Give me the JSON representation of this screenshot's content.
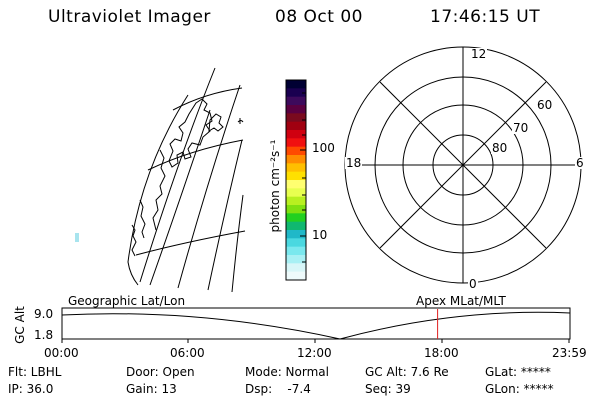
{
  "header": {
    "title": "Ultraviolet Imager",
    "date": "08 Oct 00",
    "time": "17:46:15 UT"
  },
  "colorbar": {
    "unit_label": "photon cm⁻²s⁻¹",
    "tick_labels": [
      "100",
      "10"
    ],
    "scale": "log",
    "colors_top_to_bottom": [
      "#000033",
      "#1a0050",
      "#3d0a5c",
      "#5a0040",
      "#7a0a1e",
      "#a00010",
      "#d00010",
      "#f01010",
      "#ff4a00",
      "#ff8c00",
      "#ffbf00",
      "#ffe000",
      "#ffff70",
      "#e8ff50",
      "#b8f020",
      "#7fe010",
      "#22d020",
      "#10b870",
      "#20b8c8",
      "#4ad8e0",
      "#7ae8ee",
      "#a8f0f4",
      "#d8f6f8",
      "#eefafb"
    ]
  },
  "polar_plot": {
    "mlt_labels": {
      "top": "12",
      "bottom": "0",
      "left": "18",
      "right": "6"
    },
    "lat_labels": [
      "60",
      "70",
      "80"
    ]
  },
  "timeline": {
    "left_label": "Geographic Lat/Lon",
    "right_label": "Apex MLat/MLT",
    "y_axis_title": "GC Alt",
    "y_ticks": [
      "9.0",
      "1.8"
    ],
    "x_ticks": [
      "00:00",
      "06:00",
      "12:00",
      "18:00",
      "23:59"
    ],
    "cursor_time": "17:46",
    "cursor_color": "#e02020"
  },
  "footer": {
    "row1": {
      "flt": "Flt: LBHL",
      "door": "Door: Open",
      "mode": "Mode: Normal",
      "gcalt": "GC Alt: 7.6 Re",
      "glat": "GLat: *****"
    },
    "row2": {
      "ip": "IP: 36.0",
      "gain": "Gain: 13",
      "dsp": "Dsp:    -7.4",
      "seq": "Seq: 39",
      "glon": "GLon: *****"
    }
  }
}
